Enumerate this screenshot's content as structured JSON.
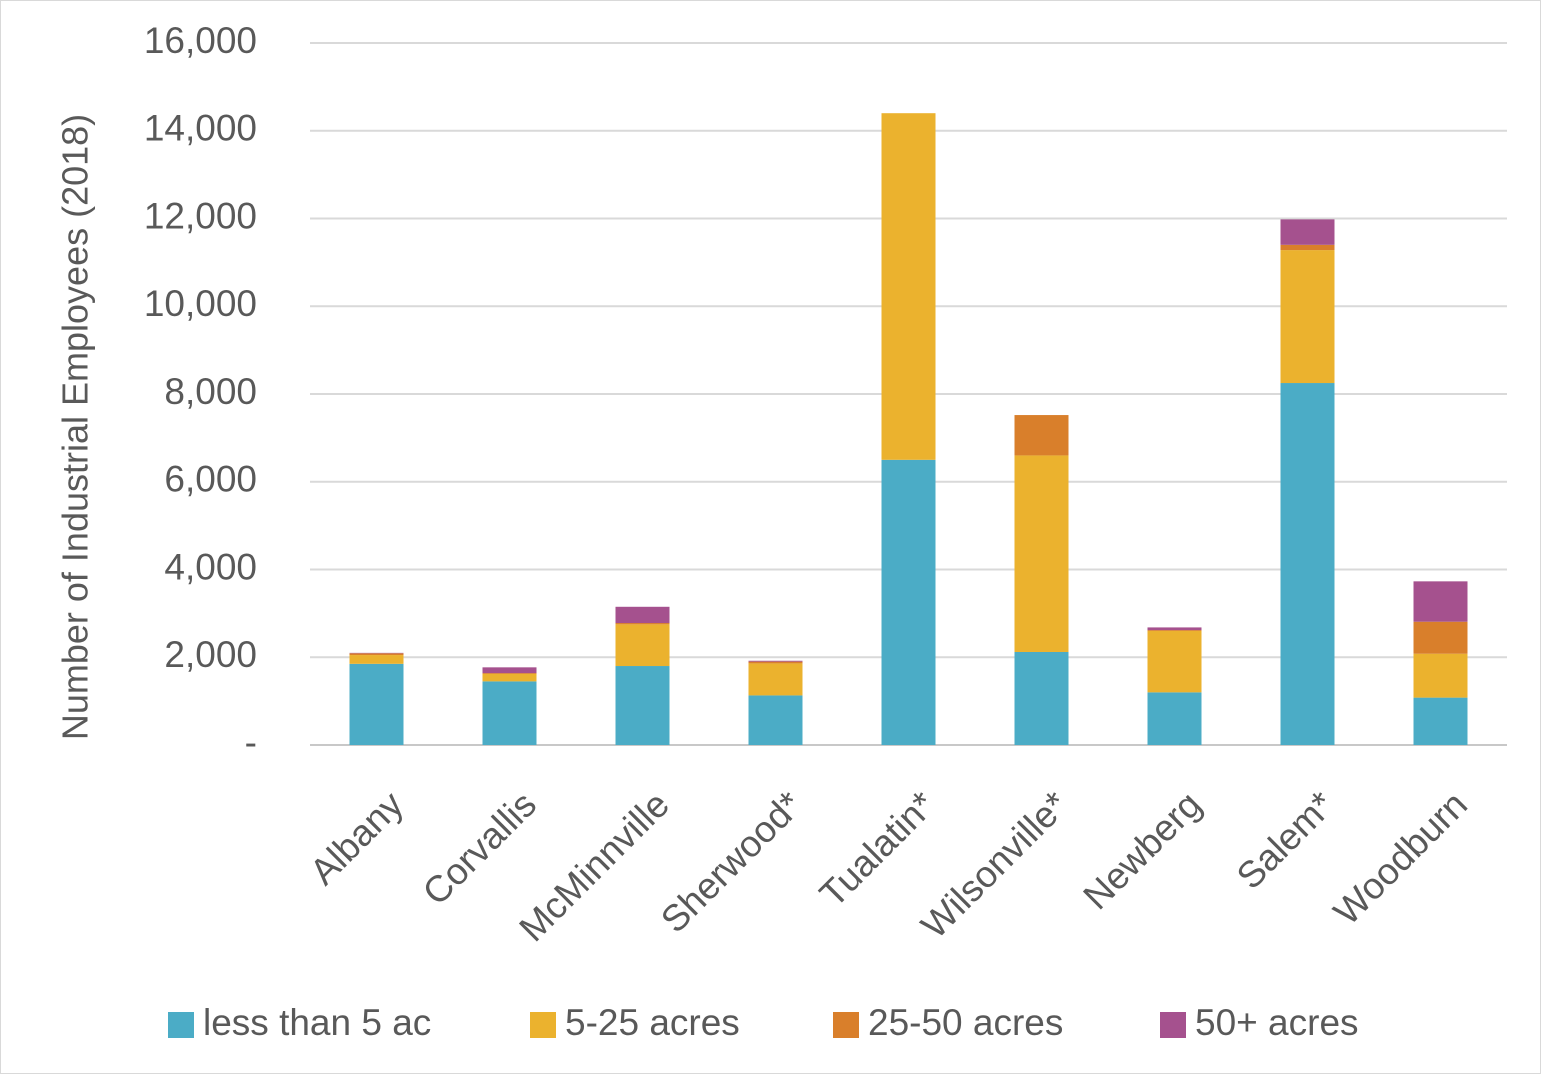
{
  "chart_data": {
    "type": "bar",
    "stacked": true,
    "title": "",
    "xlabel": "",
    "ylabel": "Number of Industrial Employees (2018)",
    "ylim": [
      0,
      16000
    ],
    "y_ticks": [
      0,
      2000,
      4000,
      6000,
      8000,
      10000,
      12000,
      14000,
      16000
    ],
    "y_tick_labels": [
      "-",
      "2,000",
      "4,000",
      "6,000",
      "8,000",
      "10,000",
      "12,000",
      "14,000",
      "16,000"
    ],
    "grid": true,
    "legend_position": "bottom",
    "categories": [
      "Albany",
      "Corvallis",
      "McMinnville",
      "Sherwood*",
      "Tualatin*",
      "Wilsonville*",
      "Newberg",
      "Salem*",
      "Woodburn"
    ],
    "series": [
      {
        "name": "less than 5 ac",
        "color": "#4BACC6",
        "values": [
          1850,
          1450,
          1800,
          1130,
          6500,
          2120,
          1200,
          8250,
          1080
        ]
      },
      {
        "name": "5-25 acres",
        "color": "#EBB22E",
        "values": [
          200,
          170,
          950,
          730,
          7900,
          4480,
          1400,
          3030,
          1000
        ]
      },
      {
        "name": "25-50 acres",
        "color": "#D97F2B",
        "values": [
          40,
          20,
          30,
          40,
          0,
          920,
          20,
          120,
          730
        ]
      },
      {
        "name": "50+ acres",
        "color": "#A5518E",
        "values": [
          10,
          130,
          370,
          20,
          0,
          0,
          60,
          580,
          920
        ]
      }
    ]
  }
}
